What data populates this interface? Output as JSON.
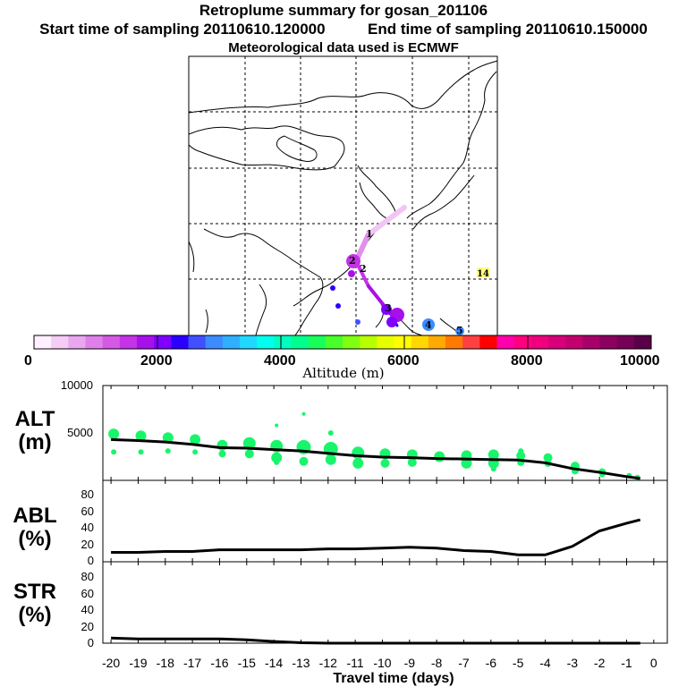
{
  "header": {
    "title": "Retroplume summary for gosan_201106",
    "start_label": "Start time of sampling 20110610.120000",
    "end_label": "End time of sampling 20110610.150000",
    "met_label": "Meteorological data used is ECMWF"
  },
  "map": {
    "markers": [
      "1",
      "2",
      "2",
      "3",
      "4",
      "5",
      "14"
    ]
  },
  "colorbar": {
    "ticks": [
      "0",
      "2000",
      "4000",
      "6000",
      "8000",
      "10000"
    ],
    "label": "Altitude (m)",
    "colors": [
      "#fff0ff",
      "#f4ccf4",
      "#eaa6ef",
      "#df80ea",
      "#d45ae6",
      "#c533e6",
      "#a810e9",
      "#7f00ff",
      "#2a00ff",
      "#4050ff",
      "#3c8bff",
      "#2eb0ff",
      "#20d8ff",
      "#00ffee",
      "#00ffc0",
      "#00ff8e",
      "#19ff5a",
      "#48ff2a",
      "#80ff10",
      "#b8ff00",
      "#e8ff00",
      "#fffe00",
      "#ffd800",
      "#ffaa00",
      "#ff7a00",
      "#ff4040",
      "#ff0000",
      "#ff00aa",
      "#ff0080",
      "#f0007f",
      "#d8007a",
      "#c40070",
      "#a8006a",
      "#8c0060",
      "#760058",
      "#5a0048"
    ]
  },
  "chart_data": [
    {
      "type": "line",
      "name": "ALT",
      "label": "ALT\n(m)",
      "label_lines": [
        "ALT",
        "(m)"
      ],
      "yticks": [
        "10000",
        "5000"
      ],
      "ylim": [
        0,
        10000
      ],
      "x": [
        -20,
        -19,
        -18,
        -17,
        -16,
        -15,
        -14,
        -13,
        -12,
        -11,
        -10,
        -9,
        -8,
        -7,
        -6,
        -5,
        -4,
        -3,
        -2,
        -1,
        -0.5
      ],
      "values": [
        4300,
        4200,
        4050,
        3800,
        3450,
        3400,
        3250,
        3100,
        2850,
        2600,
        2450,
        2400,
        2300,
        2250,
        2200,
        2150,
        1850,
        1250,
        850,
        400,
        200
      ],
      "scatter_color": "#19f56b",
      "scatter_points": [
        {
          "x": -19.9,
          "y": 4900,
          "s": 6
        },
        {
          "x": -19.9,
          "y": 3000,
          "s": 3
        },
        {
          "x": -18.9,
          "y": 4700,
          "s": 6
        },
        {
          "x": -18.9,
          "y": 3000,
          "s": 3
        },
        {
          "x": -17.9,
          "y": 4500,
          "s": 6
        },
        {
          "x": -17.9,
          "y": 3100,
          "s": 3
        },
        {
          "x": -16.9,
          "y": 4300,
          "s": 6
        },
        {
          "x": -16.9,
          "y": 3000,
          "s": 3
        },
        {
          "x": -15.9,
          "y": 3700,
          "s": 6
        },
        {
          "x": -15.9,
          "y": 2800,
          "s": 4
        },
        {
          "x": -14.9,
          "y": 3900,
          "s": 7
        },
        {
          "x": -14.9,
          "y": 2800,
          "s": 5
        },
        {
          "x": -13.9,
          "y": 3600,
          "s": 7
        },
        {
          "x": -13.9,
          "y": 2400,
          "s": 6
        },
        {
          "x": -13.9,
          "y": 5800,
          "s": 2
        },
        {
          "x": -13.9,
          "y": 1900,
          "s": 3
        },
        {
          "x": -12.9,
          "y": 3500,
          "s": 8
        },
        {
          "x": -12.9,
          "y": 2000,
          "s": 5
        },
        {
          "x": -12.9,
          "y": 7000,
          "s": 2
        },
        {
          "x": -11.9,
          "y": 3300,
          "s": 8
        },
        {
          "x": -11.9,
          "y": 2200,
          "s": 6
        },
        {
          "x": -11.9,
          "y": 5000,
          "s": 3
        },
        {
          "x": -10.9,
          "y": 2900,
          "s": 7
        },
        {
          "x": -10.9,
          "y": 1800,
          "s": 6
        },
        {
          "x": -9.9,
          "y": 2800,
          "s": 6
        },
        {
          "x": -9.9,
          "y": 1800,
          "s": 5
        },
        {
          "x": -8.9,
          "y": 2700,
          "s": 6
        },
        {
          "x": -8.9,
          "y": 1900,
          "s": 5
        },
        {
          "x": -7.9,
          "y": 2500,
          "s": 6
        },
        {
          "x": -6.9,
          "y": 2600,
          "s": 6
        },
        {
          "x": -6.9,
          "y": 1800,
          "s": 6
        },
        {
          "x": -5.9,
          "y": 2700,
          "s": 6
        },
        {
          "x": -5.9,
          "y": 1800,
          "s": 6
        },
        {
          "x": -5.9,
          "y": 1200,
          "s": 3
        },
        {
          "x": -4.9,
          "y": 2600,
          "s": 5
        },
        {
          "x": -4.9,
          "y": 1900,
          "s": 4
        },
        {
          "x": -4.9,
          "y": 3100,
          "s": 3
        },
        {
          "x": -3.9,
          "y": 2400,
          "s": 5
        },
        {
          "x": -3.9,
          "y": 1800,
          "s": 4
        },
        {
          "x": -2.9,
          "y": 1500,
          "s": 5
        },
        {
          "x": -2.9,
          "y": 1000,
          "s": 4
        },
        {
          "x": -1.9,
          "y": 900,
          "s": 4
        },
        {
          "x": -1.9,
          "y": 600,
          "s": 3
        },
        {
          "x": -0.9,
          "y": 500,
          "s": 3
        },
        {
          "x": -0.6,
          "y": 300,
          "s": 3
        }
      ]
    },
    {
      "type": "line",
      "name": "ABL",
      "label": "ABL\n(%)",
      "label_lines": [
        "ABL",
        "(%)"
      ],
      "yticks": [
        "80",
        "60",
        "40",
        "20",
        "0"
      ],
      "ylim": [
        0,
        95
      ],
      "x": [
        -20,
        -19,
        -18,
        -17,
        -16,
        -15,
        -14,
        -13,
        -12,
        -11,
        -10,
        -9,
        -8,
        -7,
        -6,
        -5,
        -4,
        -3,
        -2,
        -1,
        -0.5
      ],
      "values": [
        11,
        11,
        12,
        12,
        14,
        14,
        14,
        14,
        15,
        15,
        16,
        17,
        16,
        13,
        12,
        8,
        8,
        18,
        36,
        45,
        49
      ]
    },
    {
      "type": "line",
      "name": "STR",
      "label": "STR\n(%)",
      "label_lines": [
        "STR",
        "(%)"
      ],
      "yticks": [
        "80",
        "60",
        "40",
        "20",
        "0"
      ],
      "ylim": [
        0,
        95
      ],
      "x": [
        -20,
        -19,
        -18,
        -17,
        -16,
        -15,
        -14,
        -13,
        -12,
        -11,
        -10,
        -9,
        -8,
        -7,
        -6,
        -5,
        -4,
        -3,
        -2,
        -1,
        -0.5
      ],
      "values": [
        6,
        5,
        5,
        5,
        5,
        4,
        2,
        0.5,
        0,
        0,
        0,
        0,
        0,
        0,
        0,
        0,
        0,
        0,
        0,
        0,
        0
      ]
    }
  ],
  "xaxis": {
    "ticks": [
      "-20",
      "-19",
      "-18",
      "-17",
      "-16",
      "-15",
      "-14",
      "-13",
      "-12",
      "-11",
      "-10",
      "-9",
      "-8",
      "-7",
      "-6",
      "-5",
      "-4",
      "-3",
      "-2",
      "-1",
      "0"
    ],
    "tick_values": [
      -20,
      -19,
      -18,
      -17,
      -16,
      -15,
      -14,
      -13,
      -12,
      -11,
      -10,
      -9,
      -8,
      -7,
      -6,
      -5,
      -4,
      -3,
      -2,
      -1,
      0
    ],
    "label": "Travel time (days)",
    "range": [
      -20.3,
      0.5
    ]
  }
}
